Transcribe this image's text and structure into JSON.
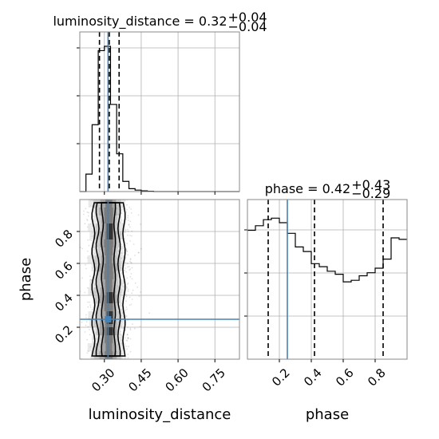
{
  "chart_data": [
    {
      "panel": "luminosity_distance marginal",
      "type": "histogram",
      "title_param": "luminosity_distance",
      "title_value": "0.32",
      "title_upper": "+0.04",
      "title_lower": "−0.04",
      "xlim": [
        0.2,
        0.85
      ],
      "bin_edges": [
        0.2,
        0.225,
        0.25,
        0.275,
        0.3,
        0.325,
        0.35,
        0.375,
        0.4,
        0.425,
        0.45,
        0.475,
        0.5,
        0.85
      ],
      "counts": [
        0,
        0.12,
        0.46,
        0.97,
        1.0,
        0.6,
        0.26,
        0.07,
        0.02,
        0.01,
        0.005,
        0.002,
        0
      ],
      "quantile_lines": [
        0.28,
        0.32,
        0.36
      ],
      "truth_line": 0.315,
      "grid": true
    },
    {
      "panel": "phase marginal",
      "type": "histogram",
      "title_param": "phase",
      "title_value": "0.42",
      "title_upper": "+0.43",
      "title_lower": "−0.29",
      "xlim": [
        0.0,
        1.0
      ],
      "bin_edges": [
        0.0,
        0.05,
        0.1,
        0.15,
        0.2,
        0.25,
        0.3,
        0.35,
        0.4,
        0.45,
        0.5,
        0.55,
        0.6,
        0.65,
        0.7,
        0.75,
        0.8,
        0.85,
        0.9,
        0.95,
        1.0
      ],
      "counts": [
        0.85,
        0.88,
        0.92,
        0.93,
        0.9,
        0.83,
        0.74,
        0.71,
        0.63,
        0.61,
        0.58,
        0.56,
        0.51,
        0.52,
        0.55,
        0.57,
        0.6,
        0.66,
        0.8,
        0.79
      ],
      "quantile_lines": [
        0.13,
        0.42,
        0.85
      ],
      "truth_line": 0.25,
      "xticks": [
        "0.2",
        "0.4",
        "0.6",
        "0.8"
      ],
      "xlabel": "phase",
      "grid": true
    },
    {
      "panel": "joint 2D",
      "type": "2d-density",
      "xlabel": "luminosity_distance",
      "ylabel": "phase",
      "xlim": [
        0.2,
        0.85
      ],
      "ylim": [
        0.0,
        1.0
      ],
      "xticks": [
        "0.30",
        "0.45",
        "0.60",
        "0.75"
      ],
      "yticks": [
        "0.2",
        "0.4",
        "0.6",
        "0.8"
      ],
      "truth": {
        "x": 0.315,
        "y": 0.25
      },
      "grid": true
    }
  ],
  "colors": {
    "truth": "#4682b4",
    "line": "#000000",
    "grid": "#b0b0b0",
    "frame": "#888888"
  }
}
